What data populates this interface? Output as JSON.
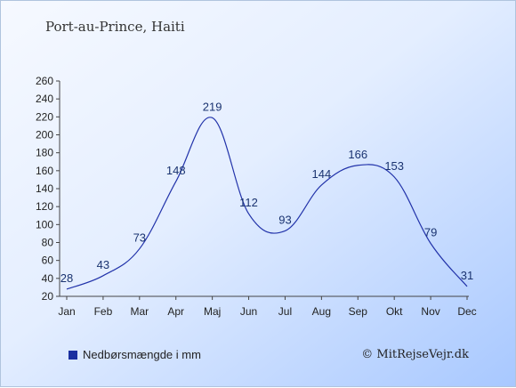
{
  "chart_data": {
    "type": "line",
    "title": "Port-au-Prince, Haiti",
    "categories": [
      "Jan",
      "Feb",
      "Mar",
      "Apr",
      "Maj",
      "Jun",
      "Jul",
      "Aug",
      "Sep",
      "Okt",
      "Nov",
      "Dec"
    ],
    "series": [
      {
        "name": "Nedbørsmængde i mm",
        "values": [
          28,
          43,
          73,
          148,
          219,
          112,
          93,
          144,
          166,
          153,
          79,
          31
        ]
      }
    ],
    "yticks": [
      20,
      40,
      60,
      80,
      100,
      120,
      140,
      160,
      180,
      200,
      220,
      240,
      260
    ],
    "ylim": [
      20,
      260
    ],
    "line_color": "#2233aa",
    "legend_color": "#1a2fa0",
    "grid": false
  },
  "credit": "© MitRejseVejr.dk"
}
